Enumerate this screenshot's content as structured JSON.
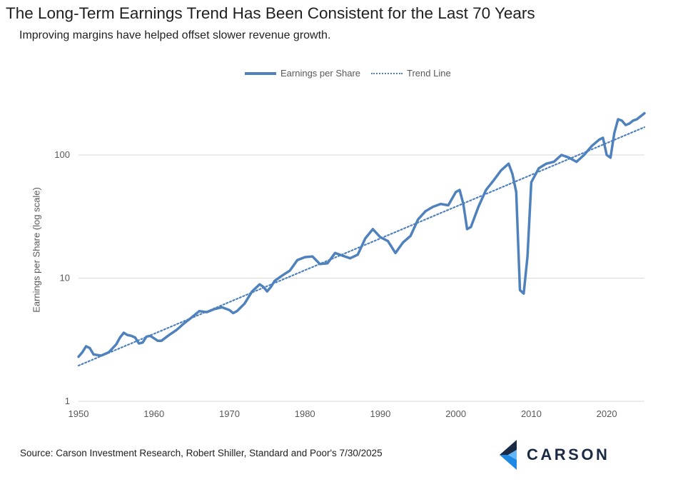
{
  "header": {
    "title": "The Long-Term Earnings Trend Has Been Consistent for the Last 70 Years",
    "subtitle": "Improving margins have helped offset slower revenue growth."
  },
  "footer": {
    "source": "Source: Carson Investment Research, Robert Shiller, Standard and Poor's 7/30/2025",
    "logo_text": "CARSON"
  },
  "colors": {
    "series": "#4f81bd",
    "grid": "#d9d9d9",
    "logo_dark": "#1a2a44",
    "logo_blue": "#1e88e5"
  },
  "chart_data": {
    "type": "line",
    "title": "The Long-Term Earnings Trend Has Been Consistent for the Last 70 Years",
    "xlabel": "",
    "ylabel": "Earnings per Share (log scale)",
    "yscale": "log",
    "xlim": [
      1950,
      2025
    ],
    "ylim": [
      1,
      350
    ],
    "xticks": [
      1950,
      1960,
      1970,
      1980,
      1990,
      2000,
      2010,
      2020
    ],
    "yticks": [
      1,
      10,
      100
    ],
    "grid": true,
    "legend_position": "top",
    "series": [
      {
        "name": "Earnings per Share",
        "style": "solid",
        "x": [
          1950,
          1950.5,
          1951,
          1951.5,
          1952,
          1953,
          1954,
          1955,
          1955.5,
          1956,
          1956.5,
          1957,
          1957.5,
          1958,
          1958.5,
          1959,
          1959.5,
          1960,
          1960.5,
          1961,
          1962,
          1963,
          1964,
          1965,
          1966,
          1967,
          1968,
          1969,
          1970,
          1970.5,
          1971,
          1972,
          1973,
          1974,
          1974.5,
          1975,
          1975.5,
          1976,
          1977,
          1978,
          1979,
          1980,
          1981,
          1982,
          1983,
          1984,
          1985,
          1986,
          1987,
          1988,
          1989,
          1990,
          1991,
          1992,
          1993,
          1994,
          1995,
          1996,
          1997,
          1998,
          1999,
          2000,
          2000.5,
          2001,
          2001.5,
          2002,
          2003,
          2004,
          2005,
          2006,
          2007,
          2007.5,
          2008,
          2008.5,
          2009,
          2009.5,
          2010,
          2011,
          2012,
          2013,
          2014,
          2015,
          2016,
          2017,
          2018,
          2019,
          2019.5,
          2020,
          2020.5,
          2021,
          2021.5,
          2022,
          2022.5,
          2023,
          2023.5,
          2024,
          2025
        ],
        "values": [
          2.3,
          2.5,
          2.8,
          2.7,
          2.4,
          2.35,
          2.5,
          2.9,
          3.3,
          3.6,
          3.45,
          3.4,
          3.3,
          2.95,
          3.0,
          3.35,
          3.4,
          3.25,
          3.1,
          3.1,
          3.45,
          3.8,
          4.3,
          4.8,
          5.4,
          5.3,
          5.6,
          5.8,
          5.5,
          5.2,
          5.4,
          6.2,
          7.8,
          8.9,
          8.5,
          7.8,
          8.5,
          9.5,
          10.5,
          11.5,
          14.0,
          14.8,
          15.0,
          13.0,
          13.2,
          16.0,
          15.2,
          14.5,
          15.5,
          21.0,
          25.0,
          21.5,
          20.0,
          16.0,
          19.5,
          22.0,
          30.0,
          35.0,
          38.0,
          40.0,
          39.0,
          50.0,
          52.0,
          40.0,
          25.0,
          26.0,
          38.0,
          52.0,
          62.0,
          75.0,
          85.0,
          70.0,
          50.0,
          8.0,
          7.5,
          15.0,
          60.0,
          78.0,
          85.0,
          88.0,
          100.0,
          95.0,
          88.0,
          100.0,
          118.0,
          133.0,
          138.0,
          100.0,
          95.0,
          150.0,
          195.0,
          190.0,
          175.0,
          180.0,
          190.0,
          195.0,
          218.0
        ]
      },
      {
        "name": "Trend Line",
        "style": "dotted",
        "x": [
          1950,
          2025
        ],
        "values": [
          1.95,
          168.0
        ]
      }
    ]
  }
}
